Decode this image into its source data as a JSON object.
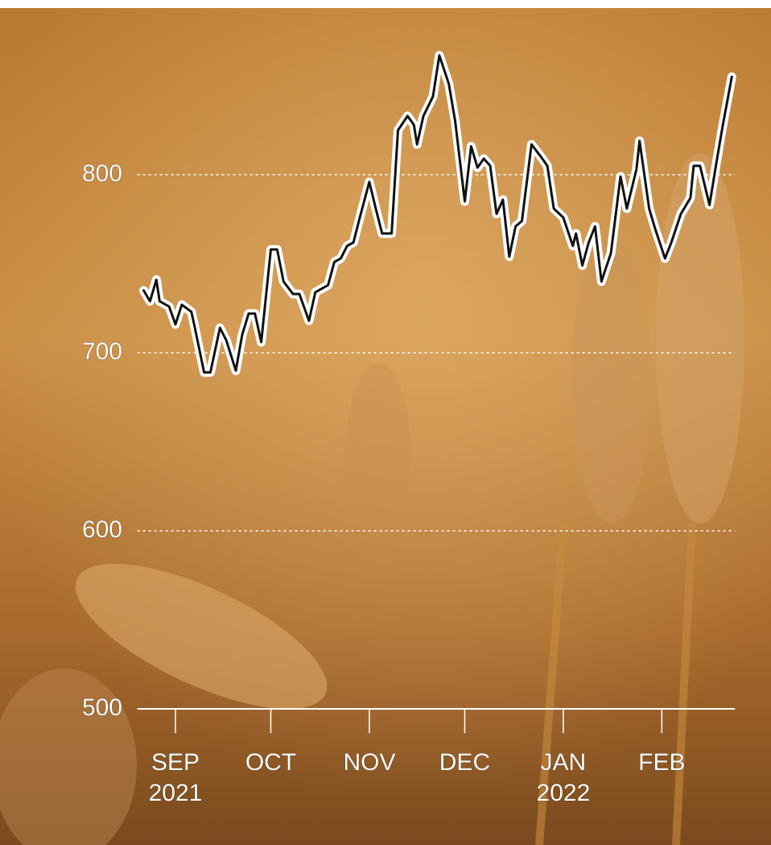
{
  "chart_data": {
    "type": "line",
    "x": [
      -10,
      -8,
      -6,
      -5,
      -2,
      0,
      2,
      5,
      6,
      9,
      11,
      14,
      16,
      19,
      21,
      23,
      25,
      27,
      30,
      32,
      34,
      37,
      39,
      42,
      44,
      46,
      48,
      50,
      52,
      54,
      56,
      58,
      61,
      63,
      65,
      68,
      70,
      73,
      75,
      76,
      78,
      81,
      83,
      86,
      88,
      91,
      93,
      95,
      97,
      99,
      101,
      103,
      105,
      107,
      109,
      112,
      115,
      117,
      119,
      122,
      125,
      126,
      128,
      130,
      132,
      134,
      137,
      140,
      142,
      145,
      146,
      149,
      151,
      154,
      156,
      159,
      162,
      163,
      165,
      168,
      170,
      172,
      175
    ],
    "values": [
      735,
      729,
      741,
      729,
      726,
      716,
      727,
      723,
      715,
      689,
      689,
      714,
      707,
      690,
      710,
      722,
      722,
      706,
      758,
      758,
      740,
      733,
      733,
      718,
      734,
      736,
      738,
      751,
      753,
      760,
      762,
      776,
      796,
      781,
      767,
      767,
      825,
      833,
      828,
      817,
      833,
      844,
      867,
      851,
      830,
      785,
      816,
      804,
      809,
      805,
      778,
      786,
      754,
      771,
      774,
      817,
      810,
      805,
      781,
      776,
      760,
      767,
      749,
      762,
      771,
      740,
      756,
      799,
      781,
      803,
      819,
      781,
      769,
      753,
      762,
      778,
      787,
      805,
      805,
      783,
      805,
      826,
      855
    ],
    "color": "#111111",
    "xlim": [
      -12,
      176
    ],
    "xticks": [
      {
        "value": 0,
        "label": [
          "SEP",
          "2021"
        ]
      },
      {
        "value": 30,
        "label": [
          "OCT"
        ]
      },
      {
        "value": 61,
        "label": [
          "NOV"
        ]
      },
      {
        "value": 91,
        "label": [
          "DEC"
        ]
      },
      {
        "value": 122,
        "label": [
          "JAN",
          "2022"
        ]
      },
      {
        "value": 153,
        "label": [
          "FEB"
        ]
      }
    ],
    "ylim": [
      500,
      890
    ],
    "yticks": [
      500,
      600,
      700,
      800
    ],
    "grid": true
  }
}
